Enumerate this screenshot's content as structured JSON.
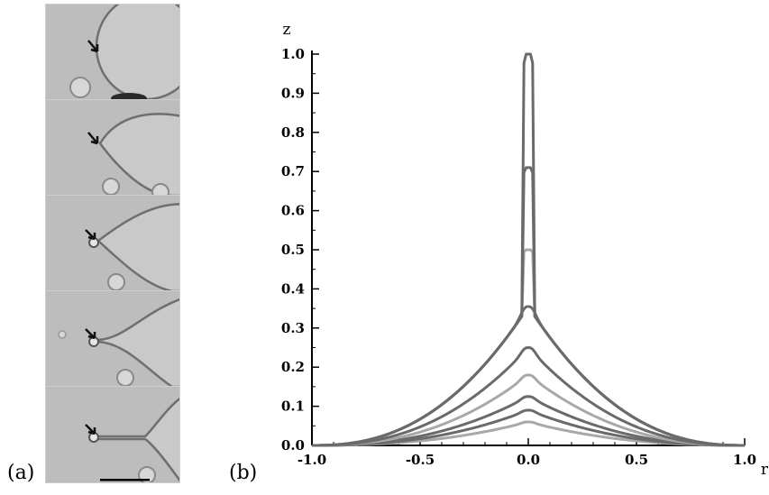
{
  "panel_a": {
    "label": "(a)",
    "frames": 5,
    "description_colors": {
      "background": "#b9b9b9",
      "drop_edge": "#6f6f6f",
      "arrow": "#111111"
    }
  },
  "panel_b": {
    "label": "(b)"
  },
  "chart_data": {
    "type": "line",
    "xlabel": "r",
    "ylabel": "z",
    "xlim": [
      -1.0,
      1.0
    ],
    "ylim": [
      0.0,
      1.0
    ],
    "xticks": [
      "-1.0",
      "-0.5",
      "0.0",
      "0.5",
      "1.0"
    ],
    "yticks": [
      "0.0",
      "0.1",
      "0.2",
      "0.3",
      "0.4",
      "0.5",
      "0.6",
      "0.7",
      "0.8",
      "0.9",
      "1.0"
    ],
    "grid": false,
    "series": [
      {
        "apex": 0.06,
        "color": "#a8a8a8"
      },
      {
        "apex": 0.09,
        "color": "#6a6a6a"
      },
      {
        "apex": 0.125,
        "color": "#6a6a6a"
      },
      {
        "apex": 0.18,
        "color": "#a8a8a8"
      },
      {
        "apex": 0.25,
        "color": "#6a6a6a"
      },
      {
        "apex": 0.355,
        "color": "#6a6a6a"
      },
      {
        "apex": 0.5,
        "color": "#a8a8a8"
      },
      {
        "apex": 0.71,
        "color": "#6a6a6a"
      },
      {
        "apex": 1.0,
        "color": "#6a6a6a"
      }
    ]
  }
}
